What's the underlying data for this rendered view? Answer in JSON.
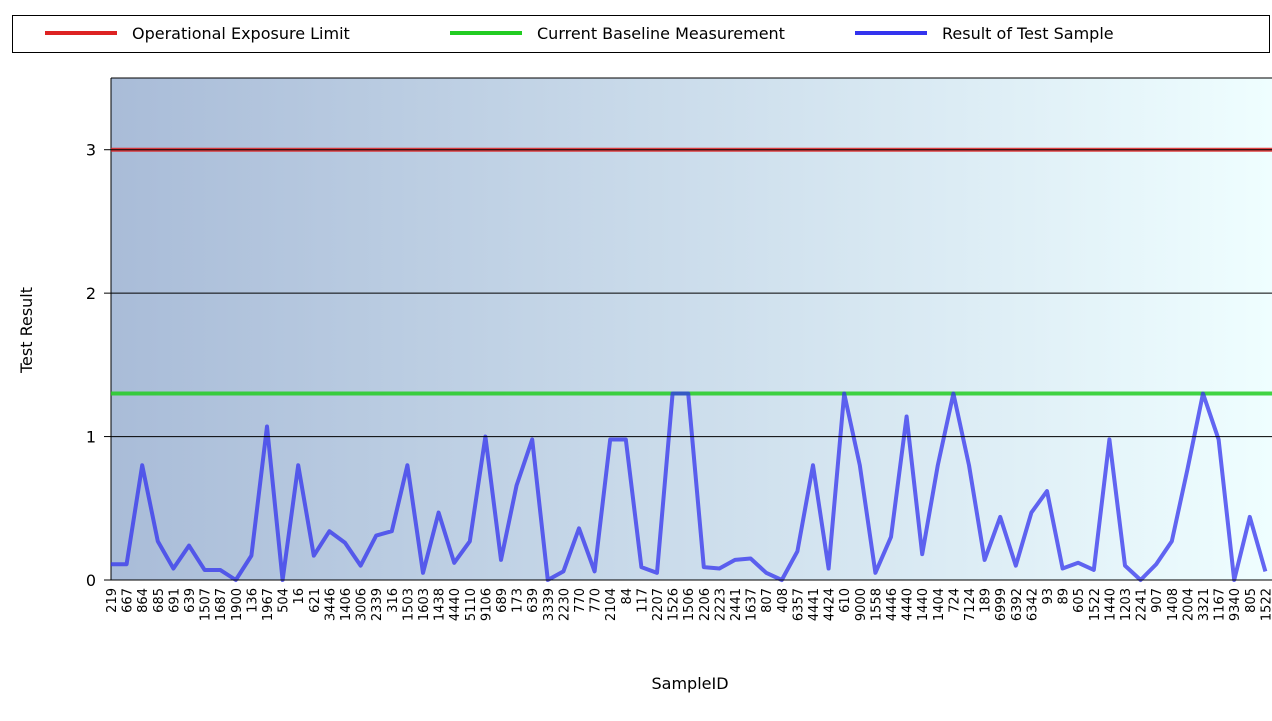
{
  "chart_data": {
    "type": "line",
    "x_label": "SampleID",
    "y_label": "Test Result",
    "categories": [
      "219",
      "667",
      "864",
      "685",
      "691",
      "639",
      "1507",
      "1687",
      "1900",
      "136",
      "1967",
      "504",
      "16",
      "621",
      "3446",
      "1406",
      "3006",
      "2339",
      "316",
      "1503",
      "1603",
      "1438",
      "4440",
      "5110",
      "9106",
      "689",
      "173",
      "639",
      "3339",
      "2230",
      "770",
      "770",
      "2104",
      "84",
      "117",
      "2207",
      "1526",
      "1506",
      "2206",
      "2223",
      "2441",
      "1637",
      "807",
      "408",
      "6357",
      "4441",
      "4424",
      "610",
      "9000",
      "1558",
      "4446",
      "4440",
      "1440",
      "1404",
      "724",
      "7124",
      "189",
      "6999",
      "6392",
      "6342",
      "93",
      "89",
      "605",
      "1522",
      "1440",
      "1203",
      "2241",
      "907",
      "1408",
      "2004",
      "3321",
      "1167",
      "9340",
      "805",
      "1522"
    ],
    "series": [
      {
        "name": "Operational Exposure Limit",
        "color": "#dd2222",
        "value": 3
      },
      {
        "name": "Current Baseline Measurement",
        "color": "#22cc22",
        "value": 1.3
      },
      {
        "name": "Result of Test Sample",
        "color": "#3333ee",
        "values": [
          0.11,
          0.11,
          0.8,
          0.27,
          0.08,
          0.24,
          0.07,
          0.07,
          0,
          0.17,
          1.07,
          0,
          0.8,
          0.17,
          0.34,
          0.26,
          0.1,
          0.31,
          0.34,
          0.8,
          0.05,
          0.47,
          0.12,
          0.27,
          1.0,
          0.14,
          0.66,
          0.98,
          0,
          0.06,
          0.36,
          0.06,
          0.98,
          0.98,
          0.09,
          0.05,
          1.3,
          1.3,
          0.09,
          0.08,
          0.14,
          0.15,
          0.05,
          0,
          0.2,
          0.8,
          0.08,
          1.3,
          0.8,
          0.05,
          0.3,
          1.14,
          0.18,
          0.8,
          1.3,
          0.8,
          0.14,
          0.44,
          0.1,
          0.47,
          0.62,
          0.08,
          0.12,
          0.07,
          0.98,
          0.1,
          0,
          0.11,
          0.27,
          0.77,
          1.3,
          0.98,
          0,
          0.44,
          0.06
        ]
      }
    ],
    "ylim": [
      0,
      3.5
    ],
    "yticks": [
      0,
      1,
      2,
      3
    ],
    "grid": true
  }
}
